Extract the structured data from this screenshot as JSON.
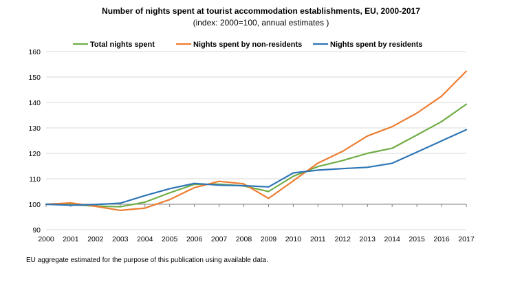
{
  "chart_data": {
    "type": "line",
    "title": "Number of nights spent at tourist accommodation establishments, EU, 2000-2017",
    "subtitle": "(index: 2000=100, annual estimates )",
    "note": "EU aggregate estimated for the purpose of this publication using available data.",
    "xlabel": "",
    "ylabel": "",
    "categories": [
      "2000",
      "2001",
      "2002",
      "2003",
      "2004",
      "2005",
      "2006",
      "2007",
      "2008",
      "2009",
      "2010",
      "2011",
      "2012",
      "2013",
      "2014",
      "2015",
      "2016",
      "2017"
    ],
    "ylim": [
      90,
      160
    ],
    "yticks": [
      90,
      100,
      110,
      120,
      130,
      140,
      150,
      160
    ],
    "grid": "horizontal",
    "legend_position": "top",
    "series": [
      {
        "name": "Total nights spent",
        "color": "#70AD47",
        "values": [
          100,
          99.8,
          99.3,
          99.0,
          100.8,
          104.5,
          107.8,
          107.9,
          107.2,
          105.0,
          111.0,
          114.8,
          117.2,
          120.0,
          122.0,
          127.2,
          132.5,
          139.3
        ]
      },
      {
        "name": "Nights spent by non-residents",
        "color": "#ED7D31",
        "values": [
          100,
          100.5,
          99.2,
          97.6,
          98.5,
          101.8,
          106.5,
          109.0,
          108.0,
          102.3,
          109.2,
          116.2,
          120.8,
          126.8,
          130.5,
          135.8,
          142.5,
          152.3
        ]
      },
      {
        "name": "Nights spent by residents",
        "color": "#2E75B6",
        "values": [
          100,
          99.6,
          99.9,
          100.4,
          103.4,
          106.1,
          108.2,
          107.5,
          107.3,
          106.8,
          112.3,
          113.4,
          114.0,
          114.5,
          116.1,
          120.5,
          124.9,
          129.3
        ]
      }
    ]
  }
}
